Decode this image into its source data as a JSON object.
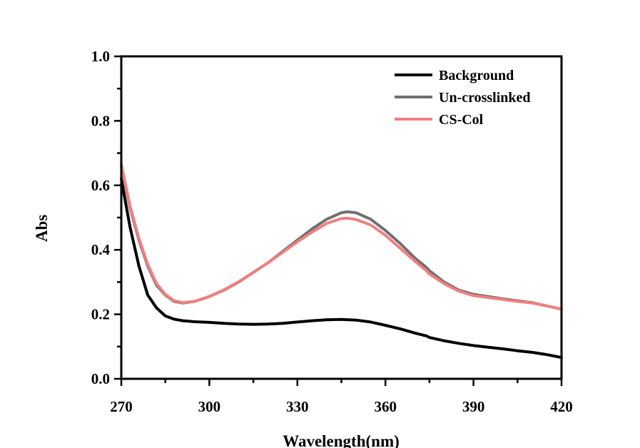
{
  "chart_data": {
    "type": "line",
    "title": "",
    "xlabel": "Wavelength(nm)",
    "ylabel": "Abs",
    "xlim": [
      270,
      420
    ],
    "ylim": [
      0.0,
      1.0
    ],
    "x_ticks": [
      270,
      300,
      330,
      360,
      390,
      420
    ],
    "x_tick_labels": [
      "270",
      "300",
      "330",
      "360",
      "390",
      "420"
    ],
    "y_ticks": [
      0.0,
      0.2,
      0.4,
      0.6,
      0.8,
      1.0
    ],
    "y_tick_labels": [
      "0.0",
      "0.2",
      "0.4",
      "0.6",
      "0.8",
      "1.0"
    ],
    "grid": false,
    "legend_position": "top-right",
    "series": [
      {
        "name": "Background",
        "color": "#000000",
        "points": [
          [
            270,
            0.62
          ],
          [
            273,
            0.47
          ],
          [
            276,
            0.35
          ],
          [
            279,
            0.26
          ],
          [
            282,
            0.22
          ],
          [
            285,
            0.195
          ],
          [
            288,
            0.185
          ],
          [
            291,
            0.18
          ],
          [
            295,
            0.177
          ],
          [
            300,
            0.175
          ],
          [
            305,
            0.172
          ],
          [
            310,
            0.17
          ],
          [
            315,
            0.169
          ],
          [
            320,
            0.17
          ],
          [
            325,
            0.172
          ],
          [
            330,
            0.176
          ],
          [
            335,
            0.18
          ],
          [
            340,
            0.183
          ],
          [
            345,
            0.184
          ],
          [
            350,
            0.182
          ],
          [
            355,
            0.176
          ],
          [
            360,
            0.166
          ],
          [
            365,
            0.155
          ],
          [
            370,
            0.142
          ],
          [
            374,
            0.133
          ],
          [
            375,
            0.128
          ],
          [
            380,
            0.118
          ],
          [
            385,
            0.11
          ],
          [
            390,
            0.103
          ],
          [
            395,
            0.098
          ],
          [
            400,
            0.093
          ],
          [
            405,
            0.087
          ],
          [
            410,
            0.082
          ],
          [
            415,
            0.075
          ],
          [
            420,
            0.066
          ]
        ]
      },
      {
        "name": "Un-crosslinked",
        "color": "#707070",
        "points": [
          [
            270,
            0.66
          ],
          [
            273,
            0.53
          ],
          [
            276,
            0.43
          ],
          [
            279,
            0.35
          ],
          [
            282,
            0.29
          ],
          [
            285,
            0.26
          ],
          [
            288,
            0.24
          ],
          [
            291,
            0.235
          ],
          [
            295,
            0.24
          ],
          [
            300,
            0.255
          ],
          [
            305,
            0.275
          ],
          [
            310,
            0.3
          ],
          [
            315,
            0.33
          ],
          [
            320,
            0.36
          ],
          [
            325,
            0.395
          ],
          [
            330,
            0.43
          ],
          [
            335,
            0.465
          ],
          [
            340,
            0.495
          ],
          [
            345,
            0.515
          ],
          [
            347,
            0.518
          ],
          [
            350,
            0.515
          ],
          [
            355,
            0.495
          ],
          [
            360,
            0.46
          ],
          [
            365,
            0.42
          ],
          [
            370,
            0.375
          ],
          [
            374,
            0.345
          ],
          [
            375,
            0.335
          ],
          [
            380,
            0.3
          ],
          [
            385,
            0.275
          ],
          [
            390,
            0.262
          ],
          [
            395,
            0.255
          ],
          [
            400,
            0.248
          ],
          [
            405,
            0.242
          ],
          [
            410,
            0.236
          ],
          [
            415,
            0.226
          ],
          [
            420,
            0.216
          ]
        ]
      },
      {
        "name": "CS-Col",
        "color": "#f07f7f",
        "points": [
          [
            270,
            0.665
          ],
          [
            273,
            0.535
          ],
          [
            276,
            0.435
          ],
          [
            279,
            0.355
          ],
          [
            282,
            0.295
          ],
          [
            285,
            0.262
          ],
          [
            288,
            0.242
          ],
          [
            291,
            0.236
          ],
          [
            295,
            0.24
          ],
          [
            300,
            0.255
          ],
          [
            305,
            0.276
          ],
          [
            310,
            0.301
          ],
          [
            315,
            0.33
          ],
          [
            320,
            0.36
          ],
          [
            325,
            0.392
          ],
          [
            330,
            0.425
          ],
          [
            335,
            0.455
          ],
          [
            340,
            0.482
          ],
          [
            345,
            0.497
          ],
          [
            347,
            0.498
          ],
          [
            350,
            0.494
          ],
          [
            355,
            0.477
          ],
          [
            360,
            0.445
          ],
          [
            365,
            0.405
          ],
          [
            370,
            0.365
          ],
          [
            374,
            0.335
          ],
          [
            375,
            0.325
          ],
          [
            380,
            0.295
          ],
          [
            385,
            0.272
          ],
          [
            390,
            0.258
          ],
          [
            395,
            0.252
          ],
          [
            400,
            0.246
          ],
          [
            405,
            0.24
          ],
          [
            410,
            0.235
          ],
          [
            415,
            0.226
          ],
          [
            420,
            0.216
          ]
        ]
      }
    ]
  }
}
